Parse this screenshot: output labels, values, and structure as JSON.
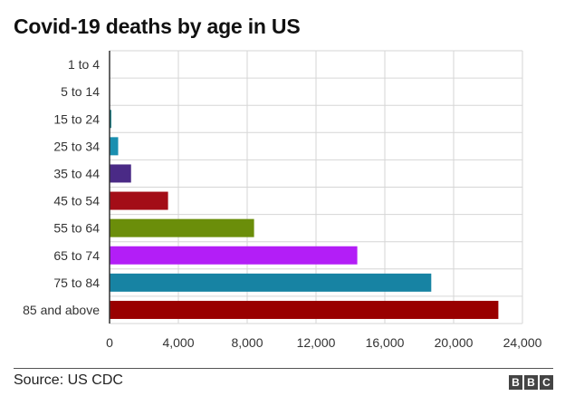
{
  "chart_data": {
    "type": "bar",
    "orientation": "horizontal",
    "title": "Covid-19 deaths by age in US",
    "categories": [
      "1 to 4",
      "5 to 14",
      "15 to 24",
      "25 to 34",
      "35 to 44",
      "45 to 54",
      "55 to 64",
      "65 to 74",
      "75 to 84",
      "85 and above"
    ],
    "values": [
      5,
      10,
      100,
      500,
      1250,
      3400,
      8400,
      14400,
      18700,
      22600
    ],
    "colors": [
      "#1f77b4",
      "#1f77b4",
      "#0f7a82",
      "#1a8fb0",
      "#4a2a86",
      "#a30d17",
      "#6b8e0a",
      "#b31ef7",
      "#1783a3",
      "#990000"
    ],
    "xlim": [
      0,
      24000
    ],
    "xticks": [
      0,
      4000,
      8000,
      12000,
      16000,
      20000,
      24000
    ],
    "xtick_labels": [
      "0",
      "4,000",
      "8,000",
      "12,000",
      "16,000",
      "20,000",
      "24,000"
    ],
    "xlabel": "",
    "ylabel": "",
    "grid": true
  },
  "footer": {
    "source": "Source: US CDC",
    "logo_letters": [
      "B",
      "B",
      "C"
    ]
  }
}
